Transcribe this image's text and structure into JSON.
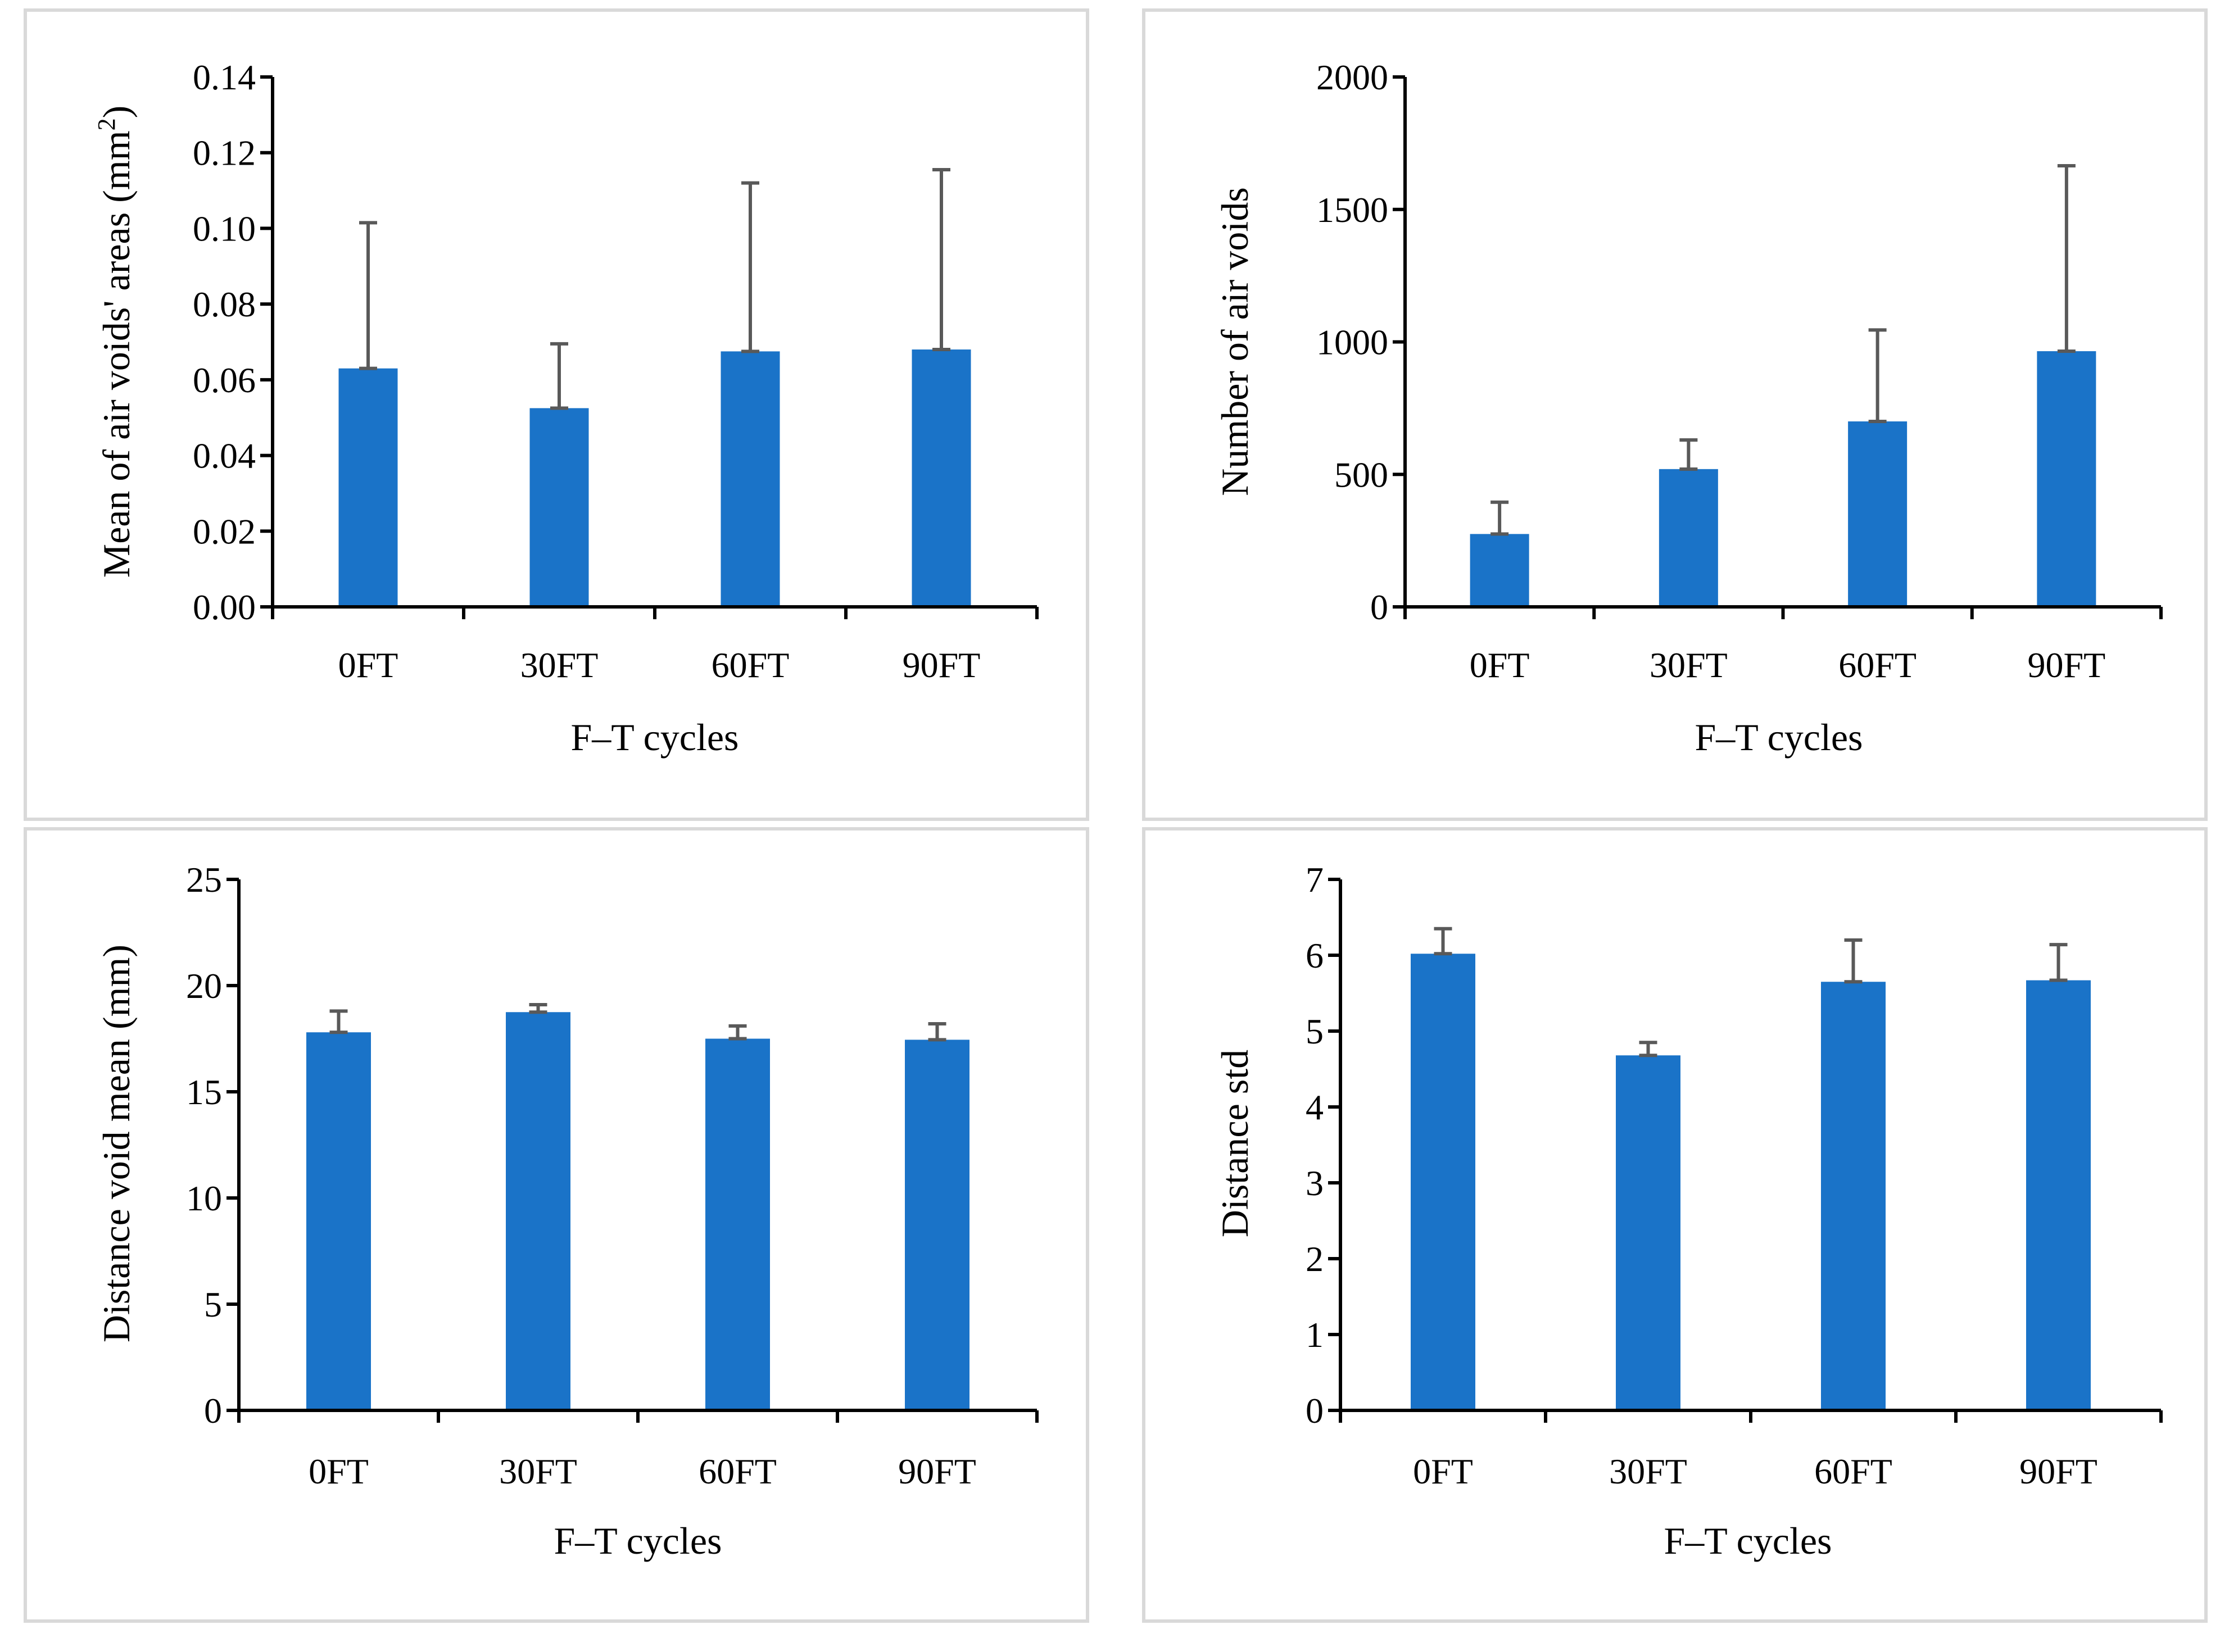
{
  "colors": {
    "bar": "#1a73c8",
    "error_bar": "#595959",
    "border": "#d9d9d9"
  },
  "chart_data": [
    {
      "type": "bar",
      "categories": [
        "0FT",
        "30FT",
        "60FT",
        "90FT"
      ],
      "values": [
        0.063,
        0.0525,
        0.0675,
        0.068
      ],
      "error_plus": [
        0.0385,
        0.017,
        0.0445,
        0.0475
      ],
      "xlabel": "F–T cycles",
      "ylabel": "Mean of air voids' areas (mm",
      "ylabel_sup": "2",
      "ylabel_close": ")",
      "ylim": [
        0,
        0.14
      ],
      "yticks": [
        "0.00",
        "0.02",
        "0.04",
        "0.06",
        "0.08",
        "0.10",
        "0.12",
        "0.14"
      ],
      "grid": false
    },
    {
      "type": "bar",
      "categories": [
        "0FT",
        "30FT",
        "60FT",
        "90FT"
      ],
      "values": [
        275,
        520,
        700,
        965
      ],
      "error_plus": [
        120,
        110,
        345,
        700
      ],
      "xlabel": "F–T cycles",
      "ylabel": "Number of air voids",
      "ylim": [
        0,
        2000
      ],
      "yticks": [
        "0",
        "500",
        "1000",
        "1500",
        "2000"
      ],
      "grid": false
    },
    {
      "type": "bar",
      "categories": [
        "0FT",
        "30FT",
        "60FT",
        "90FT"
      ],
      "values": [
        17.8,
        18.75,
        17.5,
        17.45
      ],
      "error_plus": [
        1.0,
        0.35,
        0.6,
        0.75
      ],
      "xlabel": "F–T cycles",
      "ylabel": "Distance void mean (mm)",
      "ylim": [
        0,
        25
      ],
      "yticks": [
        "0",
        "5",
        "10",
        "15",
        "20",
        "25"
      ],
      "grid": false
    },
    {
      "type": "bar",
      "categories": [
        "0FT",
        "30FT",
        "60FT",
        "90FT"
      ],
      "values": [
        6.02,
        4.68,
        5.65,
        5.67
      ],
      "error_plus": [
        0.33,
        0.17,
        0.55,
        0.47
      ],
      "xlabel": "F–T cycles",
      "ylabel": "Distance std",
      "ylim": [
        0,
        7
      ],
      "yticks": [
        "0",
        "1",
        "2",
        "3",
        "4",
        "5",
        "6",
        "7"
      ],
      "grid": false
    }
  ]
}
